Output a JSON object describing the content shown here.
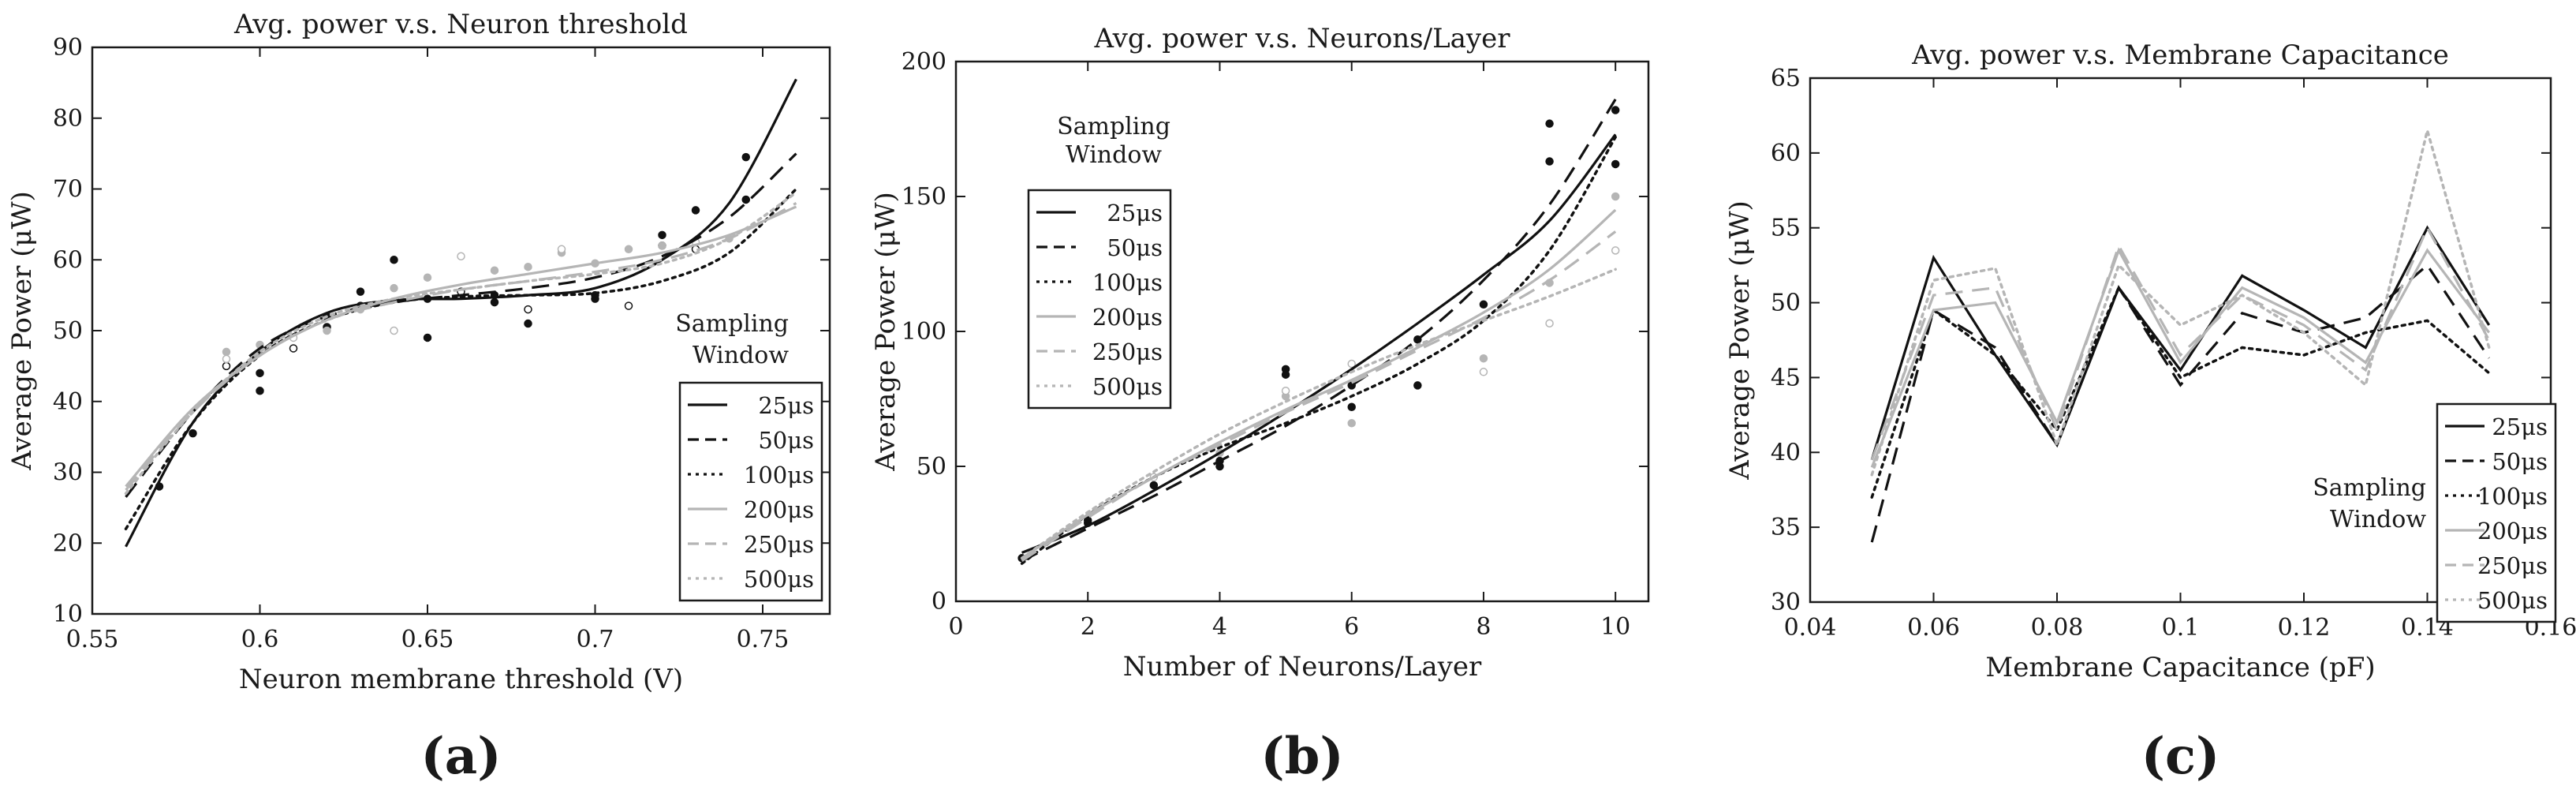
{
  "legend_title": [
    "Sampling",
    "Window"
  ],
  "series_styles": [
    {
      "name": "25μs",
      "color": "#111111",
      "dash": ""
    },
    {
      "name": "50μs",
      "color": "#111111",
      "dash": "22 12"
    },
    {
      "name": "100μs",
      "color": "#111111",
      "dash": "4 6"
    },
    {
      "name": "200μs",
      "color": "#b5b5b5",
      "dash": ""
    },
    {
      "name": "250μs",
      "color": "#b5b5b5",
      "dash": "22 12"
    },
    {
      "name": "500μs",
      "color": "#b5b5b5",
      "dash": "4 6"
    }
  ],
  "chart_data": [
    {
      "type": "line",
      "panel_label": "(a)",
      "title": "Avg. power v.s. Neuron threshold",
      "xlabel": "Neuron membrane threshold (V)",
      "ylabel": "Average Power (μW)",
      "xlim": [
        0.55,
        0.77
      ],
      "ylim": [
        10,
        90
      ],
      "xticks": [
        0.55,
        0.6,
        0.65,
        0.7,
        0.75
      ],
      "xtick_labels": [
        "0.55",
        "0.6",
        "0.65",
        "0.7",
        "0.75"
      ],
      "yticks": [
        10,
        20,
        30,
        40,
        50,
        60,
        70,
        80,
        90
      ],
      "ytick_labels": [
        "10",
        "20",
        "30",
        "40",
        "50",
        "60",
        "70",
        "80",
        "90"
      ],
      "legend_position": "bottom-right",
      "series": [
        {
          "name": "25μs",
          "x": [
            0.56,
            0.58,
            0.6,
            0.62,
            0.64,
            0.66,
            0.68,
            0.7,
            0.72,
            0.74,
            0.76
          ],
          "values": [
            19.5,
            37,
            47,
            52.5,
            54.3,
            54.5,
            55.0,
            56.0,
            60.0,
            68.0,
            85.5
          ]
        },
        {
          "name": "50μs",
          "x": [
            0.56,
            0.58,
            0.6,
            0.62,
            0.64,
            0.66,
            0.68,
            0.7,
            0.72,
            0.74,
            0.76
          ],
          "values": [
            26.5,
            38.5,
            47.5,
            52.0,
            54.0,
            55.0,
            56.0,
            57.5,
            60.5,
            66.0,
            75.0
          ]
        },
        {
          "name": "100μs",
          "x": [
            0.56,
            0.58,
            0.6,
            0.62,
            0.64,
            0.66,
            0.68,
            0.7,
            0.72,
            0.74,
            0.76
          ],
          "values": [
            22.0,
            37.0,
            46.5,
            51.5,
            54.0,
            54.8,
            55.0,
            55.3,
            57.0,
            61.0,
            70.0
          ]
        },
        {
          "name": "200μs",
          "x": [
            0.56,
            0.58,
            0.6,
            0.62,
            0.64,
            0.66,
            0.68,
            0.7,
            0.72,
            0.74,
            0.76
          ],
          "values": [
            28.0,
            39.0,
            46.5,
            51.5,
            54.5,
            56.5,
            58.0,
            59.5,
            61.0,
            63.5,
            67.5
          ]
        },
        {
          "name": "250μs",
          "x": [
            0.56,
            0.58,
            0.6,
            0.62,
            0.64,
            0.66,
            0.68,
            0.7,
            0.72,
            0.74,
            0.76
          ],
          "values": [
            27.5,
            38.5,
            46.5,
            51.5,
            54.0,
            55.8,
            57.0,
            58.3,
            60.0,
            63.0,
            68.0
          ]
        },
        {
          "name": "500μs",
          "x": [
            0.56,
            0.58,
            0.6,
            0.62,
            0.64,
            0.66,
            0.68,
            0.7,
            0.72,
            0.74,
            0.76
          ],
          "values": [
            27.0,
            38.5,
            47.0,
            52.0,
            54.5,
            55.8,
            57.0,
            58.0,
            59.5,
            63.0,
            69.5
          ]
        }
      ],
      "scatter": [
        {
          "series": "25μs",
          "x": [
            0.57,
            0.6,
            0.62,
            0.63,
            0.64,
            0.65,
            0.67,
            0.68,
            0.7,
            0.72,
            0.73,
            0.745
          ],
          "values": [
            28,
            41.5,
            52,
            55.5,
            60,
            49,
            54,
            51,
            54.5,
            63.5,
            67,
            74.5
          ]
        },
        {
          "series": "50μs",
          "x": [
            0.58,
            0.6,
            0.62,
            0.65,
            0.67,
            0.7,
            0.72,
            0.745
          ],
          "values": [
            35.5,
            44,
            50.5,
            54.5,
            55,
            55,
            62,
            68.5
          ]
        },
        {
          "series": "100μs",
          "x": [
            0.59,
            0.61,
            0.63,
            0.66,
            0.68,
            0.71,
            0.73
          ],
          "values": [
            45,
            47.5,
            53.5,
            55.5,
            53,
            53.5,
            61.5
          ]
        },
        {
          "series": "200μs",
          "x": [
            0.59,
            0.62,
            0.64,
            0.67,
            0.69,
            0.71,
            0.74
          ],
          "values": [
            47,
            50,
            56,
            58.5,
            61,
            61.5,
            63
          ]
        },
        {
          "series": "250μs",
          "x": [
            0.6,
            0.63,
            0.65,
            0.68,
            0.7,
            0.72
          ],
          "values": [
            48,
            53,
            57.5,
            59,
            59.5,
            62
          ]
        },
        {
          "series": "500μs",
          "x": [
            0.59,
            0.61,
            0.64,
            0.66,
            0.69,
            0.73
          ],
          "values": [
            46,
            49,
            50,
            60.5,
            61.5,
            62.5
          ]
        }
      ]
    },
    {
      "type": "line",
      "panel_label": "(b)",
      "title": "Avg. power v.s. Neurons/Layer",
      "xlabel": "Number of Neurons/Layer",
      "ylabel": "Average Power (μW)",
      "xlim": [
        0,
        10.5
      ],
      "ylim": [
        0,
        200
      ],
      "xticks": [
        0,
        2,
        4,
        6,
        8,
        10
      ],
      "xtick_labels": [
        "0",
        "2",
        "4",
        "6",
        "8",
        "10"
      ],
      "yticks": [
        0,
        50,
        100,
        150,
        200
      ],
      "ytick_labels": [
        "0",
        "50",
        "100",
        "150",
        "200"
      ],
      "legend_position": "top-left",
      "series": [
        {
          "name": "25μs",
          "x": [
            1,
            2,
            3,
            4,
            5,
            6,
            7,
            8,
            9,
            10
          ],
          "values": [
            18,
            28,
            41,
            55,
            70,
            86,
            103,
            121,
            141,
            173
          ]
        },
        {
          "name": "50μs",
          "x": [
            1,
            2,
            3,
            4,
            5,
            6,
            7,
            8,
            9,
            10
          ],
          "values": [
            15,
            27,
            39,
            52,
            65,
            80,
            97,
            119,
            147,
            186
          ]
        },
        {
          "name": "100μs",
          "x": [
            1,
            2,
            3,
            4,
            5,
            6,
            7,
            8,
            9,
            10
          ],
          "values": [
            14,
            32,
            46,
            57,
            66,
            76,
            88,
            104,
            130,
            172
          ]
        },
        {
          "name": "200μs",
          "x": [
            1,
            2,
            3,
            4,
            5,
            6,
            7,
            8,
            9,
            10
          ],
          "values": [
            16,
            32,
            46,
            59,
            71,
            82,
            94,
            107,
            123,
            145
          ]
        },
        {
          "name": "250μs",
          "x": [
            1,
            2,
            3,
            4,
            5,
            6,
            7,
            8,
            9,
            10
          ],
          "values": [
            15,
            31,
            46,
            58,
            70,
            81,
            93,
            105,
            119,
            137
          ]
        },
        {
          "name": "500μs",
          "x": [
            1,
            2,
            3,
            4,
            5,
            6,
            7,
            8,
            9,
            10
          ],
          "values": [
            16,
            33,
            48,
            62,
            74,
            85,
            95,
            104,
            113,
            123
          ]
        }
      ],
      "scatter": [
        {
          "series": "25μs",
          "x": [
            1,
            2,
            3,
            4,
            5,
            6,
            7,
            8,
            9,
            10
          ],
          "values": [
            16,
            29,
            43,
            50,
            86,
            80,
            80,
            110,
            177,
            162
          ]
        },
        {
          "series": "50μs",
          "x": [
            2,
            4,
            5,
            6,
            7,
            9,
            10
          ],
          "values": [
            30,
            52,
            84,
            72,
            97,
            163,
            182
          ]
        },
        {
          "series": "200μs",
          "x": [
            4,
            5,
            6,
            8,
            9,
            10
          ],
          "values": [
            55,
            76,
            66,
            90,
            118,
            150
          ]
        },
        {
          "series": "500μs",
          "x": [
            3,
            5,
            6,
            8,
            9,
            10
          ],
          "values": [
            46,
            78,
            88,
            85,
            103,
            130
          ]
        }
      ]
    },
    {
      "type": "line",
      "panel_label": "(c)",
      "title": "Avg. power v.s. Membrane Capacitance",
      "xlabel": "Membrane Capacitance (pF)",
      "ylabel": "Average Power (μW)",
      "xlim": [
        0.04,
        0.16
      ],
      "ylim": [
        30,
        65
      ],
      "xticks": [
        0.04,
        0.06,
        0.08,
        0.1,
        0.12,
        0.14,
        0.16
      ],
      "xtick_labels": [
        "0.04",
        "0.06",
        "0.08",
        "0.1",
        "0.12",
        "0.14",
        "0.16"
      ],
      "yticks": [
        30,
        35,
        40,
        45,
        50,
        55,
        60,
        65
      ],
      "ytick_labels": [
        "30",
        "35",
        "40",
        "45",
        "50",
        "55",
        "60",
        "65"
      ],
      "legend_position": "bottom-right",
      "series": [
        {
          "name": "25μs",
          "x": [
            0.05,
            0.06,
            0.07,
            0.08,
            0.09,
            0.1,
            0.11,
            0.12,
            0.13,
            0.14,
            0.15
          ],
          "values": [
            39.5,
            53,
            46.5,
            40.5,
            51,
            45.5,
            51.8,
            49.5,
            47,
            55,
            48.5
          ]
        },
        {
          "name": "50μs",
          "x": [
            0.05,
            0.06,
            0.07,
            0.08,
            0.09,
            0.1,
            0.11,
            0.12,
            0.13,
            0.14,
            0.15
          ],
          "values": [
            34,
            49.5,
            47,
            40.5,
            51,
            44.5,
            49.3,
            48,
            49,
            52.5,
            46.3
          ]
        },
        {
          "name": "100μs",
          "x": [
            0.05,
            0.06,
            0.07,
            0.08,
            0.09,
            0.1,
            0.11,
            0.12,
            0.13,
            0.14,
            0.15
          ],
          "values": [
            37,
            49.5,
            46.5,
            41.5,
            51,
            45,
            47,
            46.5,
            48,
            48.8,
            45.3
          ]
        },
        {
          "name": "200μs",
          "x": [
            0.05,
            0.06,
            0.07,
            0.08,
            0.09,
            0.1,
            0.11,
            0.12,
            0.13,
            0.14,
            0.15
          ],
          "values": [
            39,
            49.5,
            50,
            42,
            53.5,
            46,
            51,
            49,
            46,
            53.5,
            48
          ]
        },
        {
          "name": "250μs",
          "x": [
            0.05,
            0.06,
            0.07,
            0.08,
            0.09,
            0.1,
            0.11,
            0.12,
            0.13,
            0.14,
            0.15
          ],
          "values": [
            39.5,
            50.5,
            51,
            41.5,
            53.8,
            46.5,
            50.5,
            48.5,
            45.5,
            55,
            47.5
          ]
        },
        {
          "name": "500μs",
          "x": [
            0.05,
            0.06,
            0.07,
            0.08,
            0.09,
            0.1,
            0.11,
            0.12,
            0.13,
            0.14,
            0.15
          ],
          "values": [
            38.5,
            51.5,
            52.3,
            40.5,
            52.5,
            48.5,
            50.5,
            48,
            44.5,
            61.5,
            47
          ]
        }
      ],
      "scatter": []
    }
  ]
}
